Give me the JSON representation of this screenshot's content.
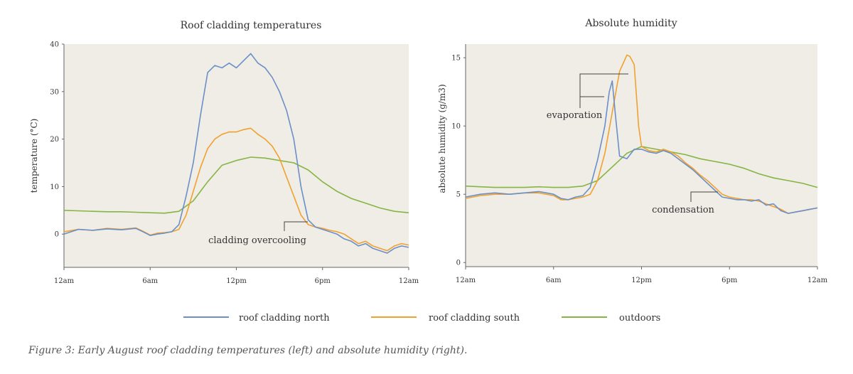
{
  "caption": "Figure 3: Early August roof cladding temperatures (left) and absolute humidity (right).",
  "colors": {
    "north": "#6b8fc7",
    "south": "#f0a12f",
    "outdoors": "#86b543",
    "plot_bg": "#efede6",
    "axis": "#666666"
  },
  "legend": [
    {
      "name": "roof cladding north",
      "color": "#6b8fc7"
    },
    {
      "name": "roof cladding south",
      "color": "#f0a12f"
    },
    {
      "name": "outdoors",
      "color": "#86b543"
    }
  ],
  "chart_data": [
    {
      "type": "line",
      "title": "Roof cladding temperatures",
      "xlabel": "",
      "ylabel": "temperature (°C)",
      "x_ticks": [
        "12am",
        "6am",
        "12pm",
        "6pm",
        "12am"
      ],
      "x_tick_values": [
        0,
        6,
        12,
        18,
        24
      ],
      "y_ticks": [
        0,
        10,
        20,
        30,
        40
      ],
      "xlim": [
        0,
        24
      ],
      "ylim": [
        -7,
        40
      ],
      "grid": false,
      "series": [
        {
          "name": "roof cladding north",
          "color": "#6b8fc7",
          "x": [
            0,
            1,
            2,
            3,
            4,
            5,
            5.5,
            6,
            6.5,
            7,
            7.5,
            8,
            8.5,
            9,
            9.5,
            10,
            10.5,
            11,
            11.5,
            12,
            12.5,
            13,
            13.5,
            14,
            14.5,
            15,
            15.5,
            16,
            16.5,
            17,
            17.5,
            18,
            18.5,
            19,
            19.5,
            20,
            20.5,
            21,
            21.5,
            22,
            22.5,
            23,
            23.5,
            24
          ],
          "y": [
            0,
            1,
            0.8,
            1.1,
            0.9,
            1.2,
            0.5,
            -0.3,
            0,
            0.2,
            0.5,
            2,
            8,
            15,
            25,
            34,
            35.5,
            35,
            36,
            35,
            36.5,
            38,
            36,
            35,
            33,
            30,
            26,
            20,
            10,
            3,
            1.5,
            1,
            0.5,
            0,
            -1,
            -1.5,
            -2.5,
            -2,
            -3,
            -3.5,
            -4,
            -3,
            -2.5,
            -2.8
          ]
        },
        {
          "name": "roof cladding south",
          "color": "#f0a12f",
          "x": [
            0,
            1,
            2,
            3,
            4,
            5,
            5.5,
            6,
            6.5,
            7,
            7.5,
            8,
            8.5,
            9,
            9.5,
            10,
            10.5,
            11,
            11.5,
            12,
            12.5,
            13,
            13.5,
            14,
            14.5,
            15,
            15.5,
            16,
            16.5,
            17,
            17.5,
            18,
            18.5,
            19,
            19.5,
            20,
            20.5,
            21,
            21.5,
            22,
            22.5,
            23,
            23.5,
            24
          ],
          "y": [
            0.5,
            1,
            0.8,
            1.2,
            1,
            1.3,
            0.6,
            -0.2,
            0.2,
            0.3,
            0.5,
            1,
            4,
            9,
            14,
            18,
            20,
            21,
            21.5,
            21.5,
            22,
            22.3,
            21,
            20,
            18.5,
            16,
            12,
            8,
            4,
            2,
            1.5,
            1.2,
            0.8,
            0.5,
            0,
            -1,
            -2,
            -1.5,
            -2.5,
            -3,
            -3.5,
            -2.5,
            -2,
            -2.3
          ]
        },
        {
          "name": "outdoors",
          "color": "#86b543",
          "x": [
            0,
            1,
            2,
            3,
            4,
            5,
            6,
            7,
            8,
            9,
            10,
            11,
            12,
            13,
            14,
            15,
            16,
            17,
            18,
            19,
            20,
            21,
            22,
            23,
            24
          ],
          "y": [
            5,
            4.9,
            4.8,
            4.7,
            4.7,
            4.6,
            4.5,
            4.4,
            4.8,
            7,
            11,
            14.5,
            15.5,
            16.2,
            16,
            15.5,
            15,
            13.5,
            11,
            9,
            7.5,
            6.5,
            5.5,
            4.8,
            4.5
          ]
        }
      ],
      "annotations": [
        {
          "text": "cladding overcooling"
        }
      ]
    },
    {
      "type": "line",
      "title": "Absolute humidity",
      "xlabel": "",
      "ylabel": "absolute humidity (g/m3)",
      "x_ticks": [
        "12am",
        "6am",
        "12pm",
        "6pm",
        "12am"
      ],
      "x_tick_values": [
        0,
        6,
        12,
        18,
        24
      ],
      "y_ticks": [
        0,
        5,
        10,
        15
      ],
      "xlim": [
        0,
        24
      ],
      "ylim": [
        -0.3,
        16
      ],
      "grid": false,
      "series": [
        {
          "name": "roof cladding north",
          "color": "#6b8fc7",
          "x": [
            0,
            1,
            2,
            3,
            4,
            5,
            6,
            6.5,
            7,
            7.5,
            8,
            8.5,
            9,
            9.5,
            9.8,
            10,
            10.2,
            10.5,
            11,
            11.5,
            12,
            12.5,
            13,
            13.5,
            14,
            14.5,
            15,
            15.5,
            16,
            16.5,
            17,
            17.5,
            18,
            18.5,
            19,
            19.5,
            20,
            20.5,
            21,
            21.5,
            22,
            22.5,
            23,
            23.5,
            24
          ],
          "y": [
            4.8,
            5,
            5.1,
            5,
            5.1,
            5.2,
            5,
            4.7,
            4.6,
            4.8,
            4.9,
            5.5,
            7.5,
            10,
            12.5,
            13.3,
            11,
            7.8,
            7.6,
            8.3,
            8.3,
            8.1,
            8,
            8.2,
            8,
            7.6,
            7.2,
            6.8,
            6.3,
            5.8,
            5.3,
            4.8,
            4.7,
            4.6,
            4.6,
            4.5,
            4.6,
            4.2,
            4.3,
            3.8,
            3.6,
            3.7,
            3.8,
            3.9,
            4
          ]
        },
        {
          "name": "roof cladding south",
          "color": "#f0a12f",
          "x": [
            0,
            1,
            2,
            3,
            4,
            5,
            6,
            6.5,
            7,
            7.5,
            8,
            8.5,
            9,
            9.5,
            10,
            10.5,
            11,
            11.2,
            11.5,
            11.8,
            12,
            12.5,
            13,
            13.5,
            14,
            14.5,
            15,
            15.5,
            16,
            16.5,
            17,
            17.5,
            18,
            18.5,
            19,
            19.5,
            20,
            20.5,
            21,
            21.5,
            22,
            22.5,
            23,
            23.5,
            24
          ],
          "y": [
            4.7,
            4.9,
            5,
            5,
            5.1,
            5.1,
            4.9,
            4.6,
            4.6,
            4.7,
            4.8,
            5,
            6,
            8,
            11,
            14,
            15.2,
            15.1,
            14.5,
            10,
            8.5,
            8.2,
            8.1,
            8.3,
            8.1,
            7.8,
            7.3,
            6.9,
            6.4,
            6,
            5.5,
            5,
            4.8,
            4.7,
            4.6,
            4.6,
            4.5,
            4.3,
            4.1,
            3.9,
            3.6,
            3.7,
            3.8,
            3.9,
            4
          ]
        },
        {
          "name": "outdoors",
          "color": "#86b543",
          "x": [
            0,
            1,
            2,
            3,
            4,
            5,
            6,
            7,
            8,
            9,
            10,
            11,
            12,
            13,
            14,
            15,
            16,
            17,
            18,
            19,
            20,
            21,
            22,
            23,
            24
          ],
          "y": [
            5.6,
            5.55,
            5.5,
            5.5,
            5.5,
            5.55,
            5.5,
            5.5,
            5.6,
            6,
            7,
            8,
            8.5,
            8.3,
            8.1,
            7.9,
            7.6,
            7.4,
            7.2,
            6.9,
            6.5,
            6.2,
            6,
            5.8,
            5.5
          ]
        }
      ],
      "annotations": [
        {
          "text": "evaporation"
        },
        {
          "text": "condensation"
        }
      ]
    }
  ]
}
